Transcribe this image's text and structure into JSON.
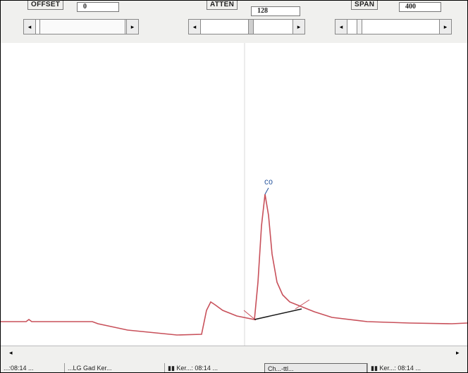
{
  "controls": {
    "offset": {
      "label": "OFFSET",
      "value": "0"
    },
    "atten": {
      "label": "ATTEN",
      "value": "128"
    },
    "span": {
      "label": "SPAN",
      "value": "400"
    }
  },
  "scroll_arrows": {
    "left": "◂",
    "right": "▸"
  },
  "peak": {
    "label": "CO"
  },
  "colors": {
    "trace": "#c8505a",
    "baseline": "#1a1a1a",
    "peak_label": "#1f4f9a",
    "cursor_line": "#d8d8d8"
  },
  "taskbar": {
    "items": [
      {
        "label": "...:08:14 ..."
      },
      {
        "label": "...LG Gad Ker..."
      },
      {
        "label": "▮▮ Ker...: 08:14 ..."
      },
      {
        "label": "Ch...-ttl..."
      },
      {
        "label": "▮▮ Ker...: 08:14 ..."
      }
    ]
  }
}
